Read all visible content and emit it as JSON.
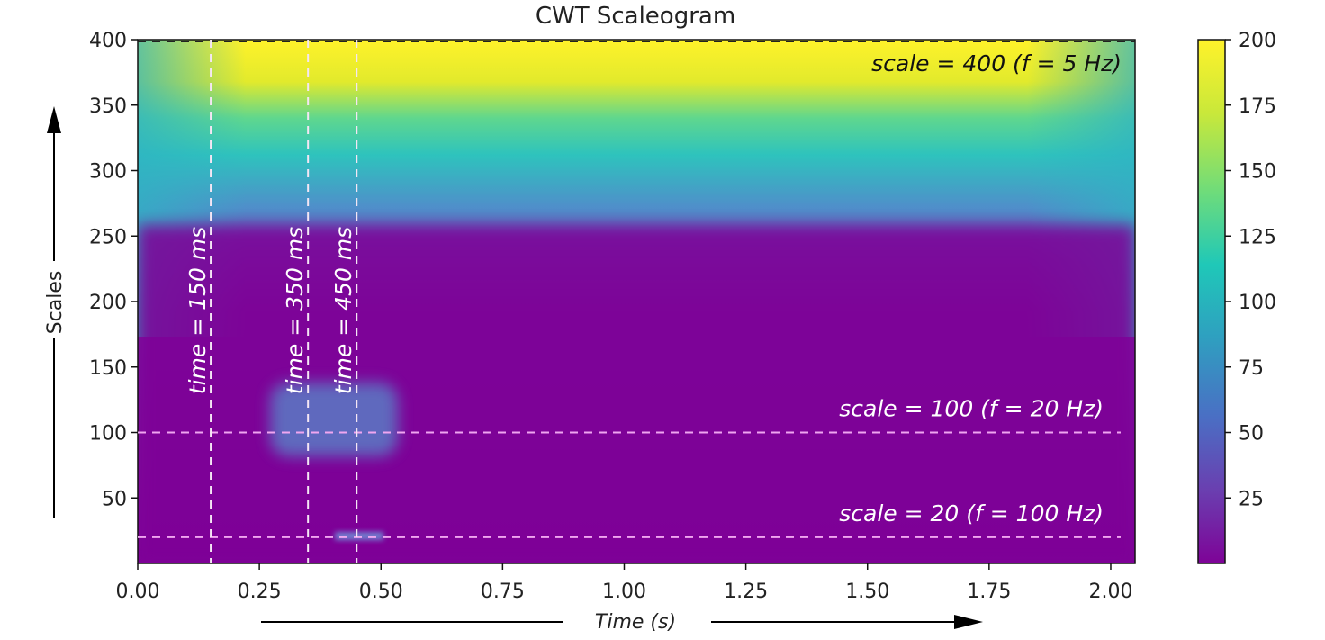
{
  "chart_data": {
    "type": "heatmap",
    "title": "CWT Scaleogram",
    "xlabel": "Time (s)",
    "ylabel": "Scales",
    "xlim": [
      0,
      2.05
    ],
    "ylim": [
      0,
      400
    ],
    "x_ticks": [
      "0.00",
      "0.25",
      "0.50",
      "0.75",
      "1.00",
      "1.25",
      "1.50",
      "1.75",
      "2.00"
    ],
    "y_ticks": [
      "50",
      "100",
      "150",
      "200",
      "250",
      "300",
      "350",
      "400"
    ],
    "colorbar": {
      "range": [
        0,
        200
      ],
      "ticks": [
        "25",
        "50",
        "75",
        "100",
        "125",
        "150",
        "175",
        "200"
      ],
      "colormap": "viridis",
      "colors": [
        "#7e0397",
        "#6a3fb0",
        "#4a6fc4",
        "#2f9fc0",
        "#1fc8b8",
        "#6fdc7a",
        "#c9e83a",
        "#fff22a"
      ]
    },
    "regions": [
      {
        "x_range": [
          0.0,
          2.05
        ],
        "y_range": [
          0,
          400
        ],
        "value": 5
      },
      {
        "x_range": [
          0.0,
          2.05
        ],
        "y_range": [
          280,
          400
        ],
        "value": "gradient to 200 at top"
      },
      {
        "x_range": [
          0.28,
          0.52
        ],
        "y_range": [
          80,
          120
        ],
        "value": 60
      },
      {
        "x_range": [
          0.4,
          0.5
        ],
        "y_range": [
          18,
          22
        ],
        "value": 40
      }
    ],
    "vlines": [
      {
        "x": 0.15,
        "label": "time = 150 ms"
      },
      {
        "x": 0.35,
        "label": "time = 350 ms"
      },
      {
        "x": 0.45,
        "label": "time = 450 ms"
      }
    ],
    "hlines": [
      {
        "y": 400,
        "label": "scale = 400  (f = 5 Hz)"
      },
      {
        "y": 100,
        "label": "scale = 100  (f = 20 Hz)"
      },
      {
        "y": 20,
        "label": "scale = 20  (f = 100 Hz)"
      }
    ]
  }
}
